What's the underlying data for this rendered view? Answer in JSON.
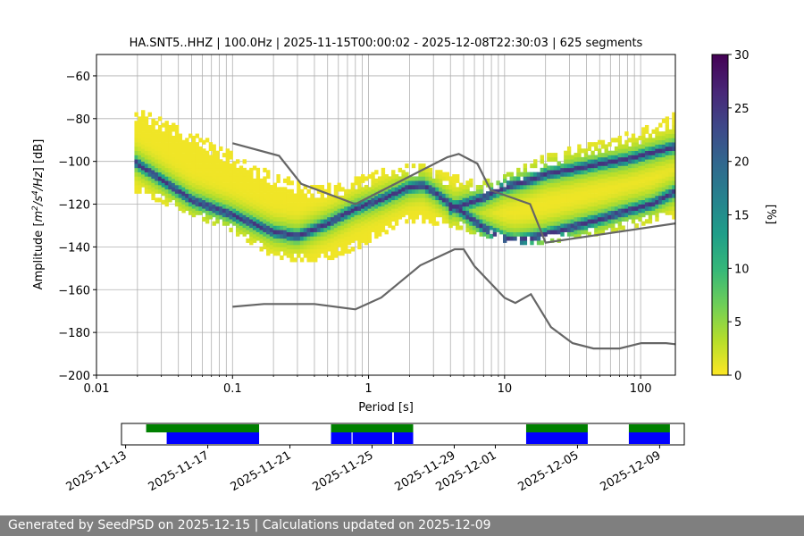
{
  "chart_data": [
    {
      "type": "heatmap",
      "title": "HA.SNT5..HHZ | 100.0Hz | 2025-11-15T00:00:02 - 2025-12-08T22:30:03 | 625 segments",
      "xlabel": "Period [s]",
      "ylabel_parts": [
        "Amplitude [",
        "m",
        "2",
        "/s",
        "4",
        "/Hz",
        "] [dB]"
      ],
      "xscale": "log",
      "xlim": [
        0.01,
        180
      ],
      "ylim": [
        -200,
        -50
      ],
      "x_ticks": [
        0.01,
        0.1,
        1,
        10,
        100
      ],
      "x_tick_labels": [
        "0.01",
        "0.1",
        "1",
        "10",
        "100"
      ],
      "y_ticks": [
        -200,
        -180,
        -160,
        -140,
        -120,
        -100,
        -80,
        -60
      ],
      "y_tick_labels": [
        "−200",
        "−180",
        "−160",
        "−140",
        "−120",
        "−100",
        "−80",
        "−60"
      ],
      "grid": true,
      "colorbar": {
        "label": "[%]",
        "range": [
          0,
          30
        ],
        "ticks": [
          0,
          5,
          10,
          15,
          20,
          25,
          30
        ],
        "tick_labels": [
          "0",
          "5",
          "10",
          "15",
          "20",
          "25",
          "30"
        ],
        "colormap": [
          "#fde725",
          "#b5de2b",
          "#6ece58",
          "#35b779",
          "#1f9e89",
          "#26828e",
          "#31688e",
          "#3e4989",
          "#482878",
          "#440154"
        ]
      },
      "density_band": {
        "period_start": 0.019,
        "period_end": 180,
        "mode_curves": [
          {
            "name": "lower mode",
            "x": [
              0.019,
              0.05,
              0.1,
              0.2,
              0.3,
              0.5,
              0.8,
              1.2,
              2,
              2.5,
              3,
              4,
              5,
              7,
              10,
              12,
              15,
              20,
              30,
              50,
              80,
              120,
              180
            ],
            "y": [
              -100,
              -118,
              -125,
              -133,
              -135,
              -129,
              -122,
              -118,
              -112,
              -111,
              -114,
              -120,
              -124,
              -131,
              -136,
              -137,
              -136,
              -134,
              -131,
              -127,
              -123,
              -120,
              -114
            ]
          },
          {
            "name": "upper mode",
            "x": [
              4,
              5,
              7,
              10,
              15,
              20,
              30,
              50,
              80,
              120,
              180
            ],
            "y": [
              -122,
              -120,
              -117,
              -112,
              -109,
              -106,
              -104,
              -101,
              -99,
              -96,
              -93
            ]
          }
        ],
        "upper_edge": {
          "x": [
            0.019,
            0.05,
            0.1,
            0.2,
            0.4,
            0.7,
            1,
            1.5,
            2.5,
            4,
            7,
            10,
            20,
            50,
            100,
            180
          ],
          "y": [
            -76,
            -87,
            -97,
            -107,
            -112,
            -110,
            -107,
            -103,
            -101,
            -107,
            -110,
            -107,
            -98,
            -91,
            -86,
            -78
          ]
        },
        "lower_edge": {
          "x": [
            0.019,
            0.05,
            0.1,
            0.2,
            0.3,
            0.5,
            0.8,
            1.2,
            2,
            3,
            5,
            8,
            12,
            20,
            40,
            80,
            180
          ],
          "y": [
            -115,
            -126,
            -134,
            -146,
            -148,
            -147,
            -142,
            -136,
            -129,
            -130,
            -133,
            -137,
            -140,
            -139,
            -136,
            -132,
            -127
          ]
        }
      },
      "noise_models": [
        {
          "name": "NHNM",
          "x": [
            0.1,
            0.22,
            0.32,
            0.8,
            3.8,
            4.6,
            6.3,
            7.9,
            15.4,
            20,
            180
          ],
          "y": [
            -91.5,
            -97.4,
            -110.5,
            -120,
            -98,
            -96.5,
            -101,
            -113.5,
            -120,
            -138,
            -129
          ]
        },
        {
          "name": "NLNM",
          "x": [
            0.1,
            0.17,
            0.4,
            0.8,
            1.24,
            2.4,
            4.3,
            5,
            6,
            10,
            12,
            15.6,
            21.9,
            31.6,
            45,
            70,
            101,
            154,
            180
          ],
          "y": [
            -168,
            -166.7,
            -166.7,
            -169.2,
            -163.7,
            -148.6,
            -141.1,
            -141.1,
            -149,
            -163.8,
            -166.2,
            -162.1,
            -177.5,
            -185,
            -187.5,
            -187.5,
            -185,
            -185,
            -185.5
          ]
        }
      ]
    },
    {
      "type": "timeline",
      "x_tick_labels": [
        "2025-11-13",
        "2025-11-17",
        "2025-11-21",
        "2025-11-25",
        "2025-11-29",
        "2025-12-01",
        "2025-12-05",
        "2025-12-09"
      ],
      "xlim_days": [
        -0.2,
        27.2
      ],
      "tick_days": [
        0,
        4,
        8,
        12,
        16,
        18,
        22,
        26
      ],
      "data_coverage": [
        {
          "start": 1,
          "end": 6.5
        },
        {
          "start": 10,
          "end": 14
        },
        {
          "start": 19.5,
          "end": 22.5
        },
        {
          "start": 24.5,
          "end": 26.5
        }
      ],
      "psd_segments": [
        {
          "start": 2,
          "end": 6.5
        },
        {
          "start": 10,
          "end": 11
        },
        {
          "start": 11.05,
          "end": 12.98
        },
        {
          "start": 13.06,
          "end": 14
        },
        {
          "start": 19.5,
          "end": 22.5
        },
        {
          "start": 24.5,
          "end": 26.5
        }
      ],
      "coverage_color": "#008000",
      "segment_color": "#0000ff"
    }
  ],
  "footer": {
    "text": "Generated by SeedPSD on 2025-12-15 | Calculations updated on 2025-12-09"
  }
}
